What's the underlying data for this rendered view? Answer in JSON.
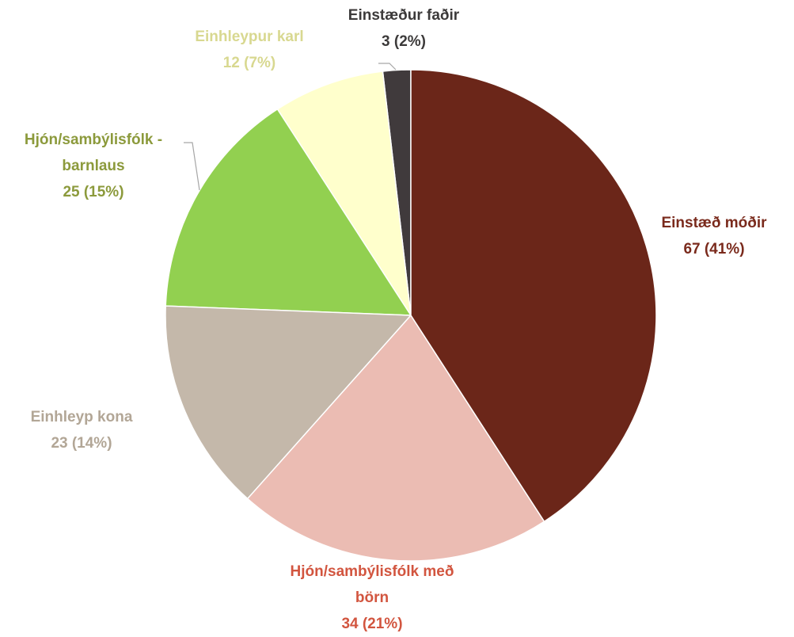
{
  "chart_data": {
    "type": "pie",
    "categories": [
      "Einstæð móðir",
      "Hjón/sambýlisfólk með börn",
      "Einhleyp kona",
      "Hjón/sambýlisfólk - barnlaus",
      "Einhleypur karl",
      "Einstæður faðir"
    ],
    "values": [
      67,
      34,
      23,
      25,
      12,
      3
    ],
    "value_labels": [
      "67 (41%)",
      "34 (21%)",
      "23 (14%)",
      "25 (15%)",
      "12 (7%)",
      "3 (2%)"
    ],
    "colors": [
      "#6b2619",
      "#ebbcb3",
      "#c4b8aa",
      "#92d050",
      "#ffffcc",
      "#403a3c"
    ],
    "label_colors": [
      "#7a2a1c",
      "#d2553f",
      "#b2a696",
      "#8c9a3c",
      "#d8d890",
      "#3c3a3a"
    ]
  }
}
